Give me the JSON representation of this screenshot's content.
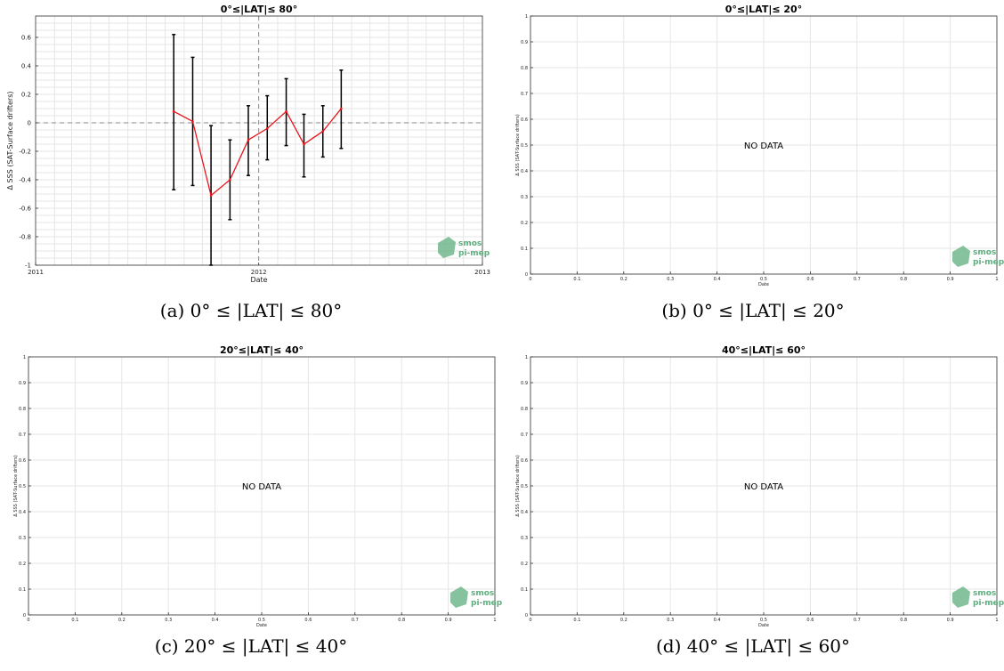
{
  "chart_data": [
    {
      "id": "a",
      "type": "line",
      "title": "0°≤|LAT|≤ 80°",
      "xlabel": "Date",
      "ylabel": "Δ SSS (SAT-Surface drifters)",
      "x_ticks": [
        "2011",
        "2012",
        "2013"
      ],
      "x_range": [
        "2011-01-01",
        "2013-01-01"
      ],
      "ylim": [
        -1,
        0.75
      ],
      "y_ticks": [
        "-1",
        "-0.8",
        "-0.6",
        "-0.4",
        "-0.2",
        "0",
        "0.2",
        "0.4",
        "0.6"
      ],
      "grid": true,
      "reference_lines": {
        "horizontal_y": 0,
        "vertical_x": "2012-01-01"
      },
      "series": [
        {
          "color": "#e8141b",
          "points": [
            {
              "x": "2011-08-15",
              "y": 0.08,
              "err_low": -0.47,
              "err_high": 0.62
            },
            {
              "x": "2011-09-15",
              "y": 0.01,
              "err_low": -0.44,
              "err_high": 0.46
            },
            {
              "x": "2011-10-15",
              "y": -0.51,
              "err_low": -1.0,
              "err_high": -0.02
            },
            {
              "x": "2011-11-15",
              "y": -0.4,
              "err_low": -0.68,
              "err_high": -0.12
            },
            {
              "x": "2011-12-15",
              "y": -0.12,
              "err_low": -0.37,
              "err_high": 0.12
            },
            {
              "x": "2012-01-15",
              "y": -0.04,
              "err_low": -0.26,
              "err_high": 0.19
            },
            {
              "x": "2012-02-15",
              "y": 0.08,
              "err_low": -0.16,
              "err_high": 0.31
            },
            {
              "x": "2012-03-15",
              "y": -0.15,
              "err_low": -0.38,
              "err_high": 0.06
            },
            {
              "x": "2012-04-15",
              "y": -0.06,
              "err_low": -0.24,
              "err_high": 0.12
            },
            {
              "x": "2012-05-15",
              "y": 0.1,
              "err_low": -0.18,
              "err_high": 0.37
            }
          ]
        }
      ],
      "logo": [
        "smos",
        "pi-mep"
      ],
      "caption": "(a) 0° ≤ |LAT| ≤ 80°"
    },
    {
      "id": "b",
      "type": "line",
      "title": "0°≤|LAT|≤ 20°",
      "xlabel": "Date",
      "ylabel": "Δ SSS (SAT-Surface drifters)",
      "xlim": [
        0,
        1
      ],
      "ylim": [
        0,
        1
      ],
      "x_ticks": [
        "0",
        "0.1",
        "0.2",
        "0.3",
        "0.4",
        "0.5",
        "0.6",
        "0.7",
        "0.8",
        "0.9",
        "1"
      ],
      "y_ticks": [
        "0",
        "0.1",
        "0.2",
        "0.3",
        "0.4",
        "0.5",
        "0.6",
        "0.7",
        "0.8",
        "0.9",
        "1"
      ],
      "grid": true,
      "series": [],
      "annotation": "NO DATA",
      "logo": [
        "smos",
        "pi-mep"
      ],
      "caption": "(b) 0° ≤ |LAT| ≤ 20°"
    },
    {
      "id": "c",
      "type": "line",
      "title": "20°≤|LAT|≤ 40°",
      "xlabel": "Date",
      "ylabel": "Δ SSS (SAT-Surface drifters)",
      "xlim": [
        0,
        1
      ],
      "ylim": [
        0,
        1
      ],
      "x_ticks": [
        "0",
        "0.1",
        "0.2",
        "0.3",
        "0.4",
        "0.5",
        "0.6",
        "0.7",
        "0.8",
        "0.9",
        "1"
      ],
      "y_ticks": [
        "0",
        "0.1",
        "0.2",
        "0.3",
        "0.4",
        "0.5",
        "0.6",
        "0.7",
        "0.8",
        "0.9",
        "1"
      ],
      "grid": true,
      "series": [],
      "annotation": "NO DATA",
      "logo": [
        "smos",
        "pi-mep"
      ],
      "caption": "(c) 20° ≤ |LAT| ≤ 40°"
    },
    {
      "id": "d",
      "type": "line",
      "title": "40°≤|LAT|≤ 60°",
      "xlabel": "Date",
      "ylabel": "Δ SSS (SAT-Surface drifters)",
      "xlim": [
        0,
        1
      ],
      "ylim": [
        0,
        1
      ],
      "x_ticks": [
        "0",
        "0.1",
        "0.2",
        "0.3",
        "0.4",
        "0.5",
        "0.6",
        "0.7",
        "0.8",
        "0.9",
        "1"
      ],
      "y_ticks": [
        "0",
        "0.1",
        "0.2",
        "0.3",
        "0.4",
        "0.5",
        "0.6",
        "0.7",
        "0.8",
        "0.9",
        "1"
      ],
      "grid": true,
      "series": [],
      "annotation": "NO DATA",
      "logo": [
        "smos",
        "pi-mep"
      ],
      "caption": "(d) 40° ≤ |LAT| ≤ 60°"
    }
  ],
  "colors": {
    "line": "#e8141b",
    "errorbar": "#000000",
    "grid": "#e6e6e6",
    "reference": "#888888",
    "logo": "#5fae7f"
  }
}
